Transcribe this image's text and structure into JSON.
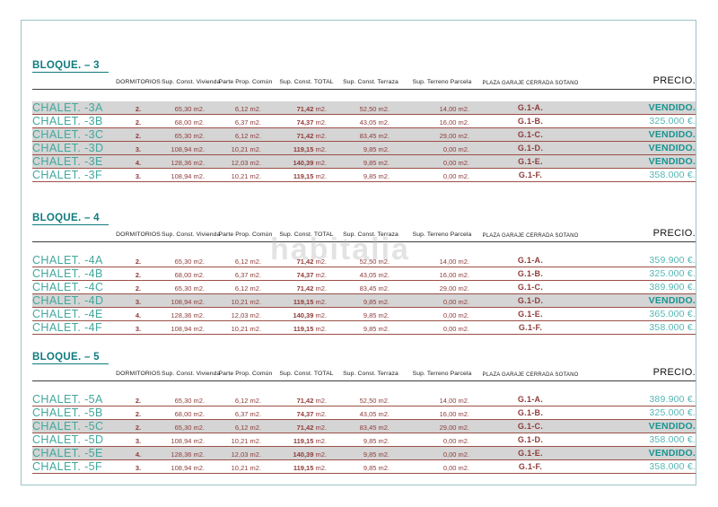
{
  "watermark": "habitalia",
  "columns": {
    "dormitorios": "DORMITORIOS",
    "vivienda": "Sup. Const. Vivienda",
    "comun": "Parte Prop. Común",
    "total": "Sup. Const. TOTAL",
    "terraza": "Sup. Const. Terraza",
    "parcela": "Sup. Terreno Parcela",
    "garaje": "PLAZA GARAJE CERRADA SOTANO",
    "precio": "PRECIO."
  },
  "colors": {
    "heading_teal": "#0f7b7e",
    "name_teal": "#41a89d",
    "sold_teal": "#1a9491",
    "price_teal": "#54b6b3",
    "value_maroon": "#8e3c3a",
    "row_line": "#9c4f47",
    "page_border": "#9cc4c6",
    "sold_band": "#d5d5d5"
  },
  "blocks": [
    {
      "title": "BLOQUE. – 3",
      "rows": [
        {
          "name": "CHALET. -3A",
          "dorm": "2.",
          "viv": "65,30 m2.",
          "comun": "6,12 m2.",
          "total": "71,42 m2.",
          "terraza": "52,50 m2.",
          "parcela": "14,00 m2.",
          "garaje": "G.1-A.",
          "precio": "VENDIDO.",
          "sold": true
        },
        {
          "name": "CHALET. -3B",
          "dorm": "2.",
          "viv": "68,00 m2.",
          "comun": "6,37 m2.",
          "total": "74,37 m2.",
          "terraza": "43,05 m2.",
          "parcela": "16,00 m2.",
          "garaje": "G.1-B.",
          "precio": "325.000 €.",
          "sold": false
        },
        {
          "name": "CHALET. -3C",
          "dorm": "2.",
          "viv": "65,30 m2.",
          "comun": "6,12 m2.",
          "total": "71,42 m2.",
          "terraza": "83,45 m2.",
          "parcela": "29,00 m2.",
          "garaje": "G.1-C.",
          "precio": "VENDIDO.",
          "sold": true
        },
        {
          "name": "CHALET. -3D",
          "dorm": "3.",
          "viv": "108,94 m2.",
          "comun": "10,21 m2.",
          "total": "119,15 m2.",
          "terraza": "9,85 m2.",
          "parcela": "0,00 m2.",
          "garaje": "G.1-D.",
          "precio": "VENDIDO.",
          "sold": true
        },
        {
          "name": "CHALET. -3E",
          "dorm": "4.",
          "viv": "128,36 m2.",
          "comun": "12,03 m2.",
          "total": "140,39 m2.",
          "terraza": "9,85 m2.",
          "parcela": "0,00 m2.",
          "garaje": "G.1-E.",
          "precio": "VENDIDO.",
          "sold": true
        },
        {
          "name": "CHALET. -3F",
          "dorm": "3.",
          "viv": "108,94 m2.",
          "comun": "10,21 m2.",
          "total": "119,15 m2.",
          "terraza": "9,85 m2.",
          "parcela": "0,00 m2.",
          "garaje": "G.1-F.",
          "precio": "358.000 €.",
          "sold": false
        }
      ]
    },
    {
      "title": "BLOQUE. – 4",
      "rows": [
        {
          "name": "CHALET. -4A",
          "dorm": "2.",
          "viv": "65,30 m2.",
          "comun": "6,12 m2.",
          "total": "71,42 m2.",
          "terraza": "52,50 m2.",
          "parcela": "14,00 m2.",
          "garaje": "G.1-A.",
          "precio": "359.900 €.",
          "sold": false
        },
        {
          "name": "CHALET. -4B",
          "dorm": "2.",
          "viv": "68,00 m2.",
          "comun": "6,37 m2.",
          "total": "74,37 m2.",
          "terraza": "43,05 m2.",
          "parcela": "16,00 m2.",
          "garaje": "G.1-B.",
          "precio": "325.000 €.",
          "sold": false
        },
        {
          "name": "CHALET. -4C",
          "dorm": "2.",
          "viv": "65,30 m2.",
          "comun": "6,12 m2.",
          "total": "71,42 m2.",
          "terraza": "83,45 m2.",
          "parcela": "29,00 m2.",
          "garaje": "G.1-C.",
          "precio": "389.900 €.",
          "sold": false
        },
        {
          "name": "CHALET. -4D",
          "dorm": "3.",
          "viv": "108,94 m2.",
          "comun": "10,21 m2.",
          "total": "119,15 m2.",
          "terraza": "9,85 m2.",
          "parcela": "0,00 m2.",
          "garaje": "G.1-D.",
          "precio": "VENDIDO.",
          "sold": true
        },
        {
          "name": "CHALET. -4E",
          "dorm": "4.",
          "viv": "128,36 m2.",
          "comun": "12,03 m2.",
          "total": "140,39 m2.",
          "terraza": "9,85 m2.",
          "parcela": "0,00 m2.",
          "garaje": "G.1-E.",
          "precio": "365.000 €.",
          "sold": false
        },
        {
          "name": "CHALET. -4F",
          "dorm": "3.",
          "viv": "108,94 m2.",
          "comun": "10,21 m2.",
          "total": "119,15 m2.",
          "terraza": "9,85 m2.",
          "parcela": "0,00 m2.",
          "garaje": "G.1-F.",
          "precio": "358.000 €.",
          "sold": false
        }
      ]
    },
    {
      "title": "BLOQUE. – 5",
      "rows": [
        {
          "name": "CHALET. -5A",
          "dorm": "2.",
          "viv": "65,30 m2.",
          "comun": "6,12 m2.",
          "total": "71,42 m2.",
          "terraza": "52,50 m2.",
          "parcela": "14,00 m2.",
          "garaje": "G.1-A.",
          "precio": "389.900 €.",
          "sold": false
        },
        {
          "name": "CHALET. -5B",
          "dorm": "2.",
          "viv": "68,00 m2.",
          "comun": "6,37 m2.",
          "total": "74,37 m2.",
          "terraza": "43,05 m2.",
          "parcela": "16,00 m2.",
          "garaje": "G.1-B.",
          "precio": "325.000 €.",
          "sold": false
        },
        {
          "name": "CHALET. -5C",
          "dorm": "2.",
          "viv": "65,30 m2.",
          "comun": "6,12 m2.",
          "total": "71,42 m2.",
          "terraza": "83,45 m2.",
          "parcela": "29,00 m2.",
          "garaje": "G.1-C.",
          "precio": "VENDIDO.",
          "sold": true
        },
        {
          "name": "CHALET. -5D",
          "dorm": "3.",
          "viv": "108,94 m2.",
          "comun": "10,21 m2.",
          "total": "119,15 m2.",
          "terraza": "9,85 m2.",
          "parcela": "0,00 m2.",
          "garaje": "G.1-D.",
          "precio": "358.000 €.",
          "sold": false
        },
        {
          "name": "CHALET. -5E",
          "dorm": "4.",
          "viv": "128,36 m2.",
          "comun": "12,03 m2.",
          "total": "140,39 m2.",
          "terraza": "9,85 m2.",
          "parcela": "0,00 m2.",
          "garaje": "G.1-E.",
          "precio": "VENDIDO.",
          "sold": true
        },
        {
          "name": "CHALET. -5F",
          "dorm": "3.",
          "viv": "108,94 m2.",
          "comun": "10,21 m2.",
          "total": "119,15 m2.",
          "terraza": "9,85 m2.",
          "parcela": "0,00 m2.",
          "garaje": "G.1-F.",
          "precio": "358.000 €.",
          "sold": false
        }
      ]
    }
  ]
}
